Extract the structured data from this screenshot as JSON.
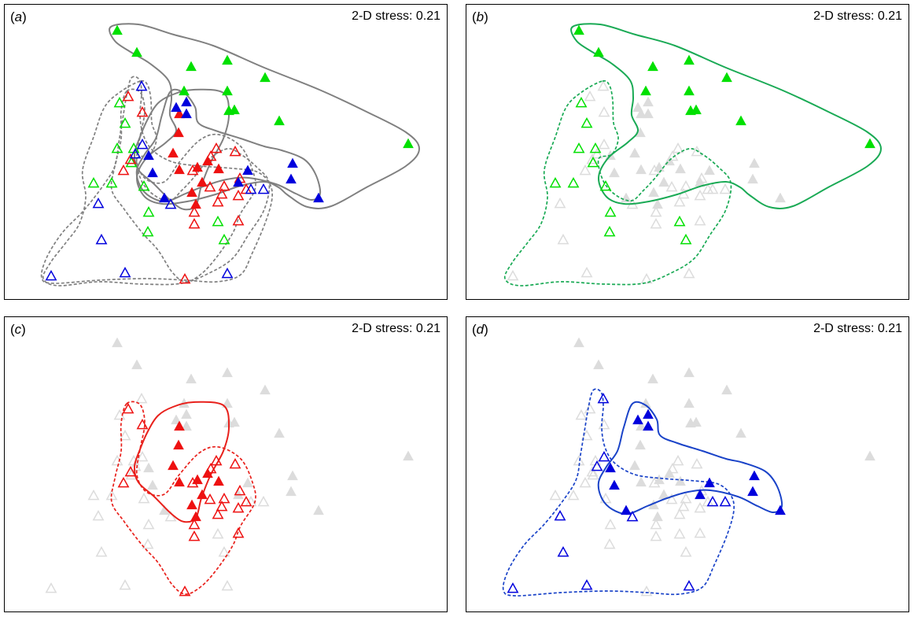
{
  "chart_data": [
    {
      "type": "scatter",
      "panel_label": "a",
      "stress_text": "2-D stress: 0.21",
      "highlight": "all",
      "outlines": [
        "green_filled",
        "green_open",
        "red_filled",
        "red_open",
        "blue_filled",
        "blue_open"
      ],
      "outline_color": "#808080"
    },
    {
      "type": "scatter",
      "panel_label": "b",
      "stress_text": "2-D stress: 0.21",
      "highlight": "green",
      "outlines": [
        "green_filled",
        "green_open"
      ],
      "outline_color": "#1aaa55"
    },
    {
      "type": "scatter",
      "panel_label": "c",
      "stress_text": "2-D stress: 0.21",
      "highlight": "red",
      "outlines": [
        "red_filled",
        "red_open"
      ],
      "outline_color": "#e8211c"
    },
    {
      "type": "scatter",
      "panel_label": "d",
      "stress_text": "2-D stress: 0.21",
      "highlight": "blue",
      "outlines": [
        "blue_filled",
        "blue_open"
      ],
      "outline_color": "#1a43c8"
    }
  ],
  "axes": {
    "xlim": [
      0,
      564
    ],
    "ylim": [
      0,
      376
    ],
    "ticks": "none",
    "grid": false
  },
  "colors": {
    "green": "#00e000",
    "red": "#ee1111",
    "blue": "#0000dd",
    "background_points": "#dcdcdc"
  },
  "points": [
    {
      "g": "green",
      "f": true,
      "x": 143,
      "y": 33
    },
    {
      "g": "green",
      "f": true,
      "x": 168,
      "y": 61
    },
    {
      "g": "green",
      "f": true,
      "x": 237,
      "y": 79
    },
    {
      "g": "green",
      "f": true,
      "x": 283,
      "y": 71
    },
    {
      "g": "green",
      "f": true,
      "x": 331,
      "y": 93
    },
    {
      "g": "green",
      "f": true,
      "x": 228,
      "y": 110
    },
    {
      "g": "green",
      "f": true,
      "x": 283,
      "y": 110
    },
    {
      "g": "green",
      "f": true,
      "x": 285,
      "y": 135
    },
    {
      "g": "green",
      "f": true,
      "x": 292,
      "y": 134
    },
    {
      "g": "green",
      "f": true,
      "x": 349,
      "y": 148
    },
    {
      "g": "green",
      "f": true,
      "x": 513,
      "y": 177
    },
    {
      "g": "green",
      "f": false,
      "x": 146,
      "y": 125
    },
    {
      "g": "green",
      "f": false,
      "x": 153,
      "y": 151
    },
    {
      "g": "green",
      "f": false,
      "x": 143,
      "y": 183
    },
    {
      "g": "green",
      "f": false,
      "x": 164,
      "y": 183
    },
    {
      "g": "green",
      "f": false,
      "x": 161,
      "y": 201
    },
    {
      "g": "green",
      "f": false,
      "x": 113,
      "y": 227
    },
    {
      "g": "green",
      "f": false,
      "x": 136,
      "y": 227
    },
    {
      "g": "green",
      "f": false,
      "x": 177,
      "y": 231
    },
    {
      "g": "green",
      "f": false,
      "x": 183,
      "y": 264
    },
    {
      "g": "green",
      "f": false,
      "x": 271,
      "y": 276
    },
    {
      "g": "green",
      "f": false,
      "x": 182,
      "y": 289
    },
    {
      "g": "green",
      "f": false,
      "x": 279,
      "y": 299
    },
    {
      "g": "red",
      "f": true,
      "x": 222,
      "y": 139
    },
    {
      "g": "red",
      "f": true,
      "x": 221,
      "y": 163
    },
    {
      "g": "red",
      "f": true,
      "x": 214,
      "y": 189
    },
    {
      "g": "red",
      "f": true,
      "x": 258,
      "y": 199
    },
    {
      "g": "red",
      "f": true,
      "x": 245,
      "y": 207
    },
    {
      "g": "red",
      "f": true,
      "x": 222,
      "y": 210
    },
    {
      "g": "red",
      "f": true,
      "x": 272,
      "y": 209
    },
    {
      "g": "red",
      "f": true,
      "x": 238,
      "y": 239
    },
    {
      "g": "red",
      "f": true,
      "x": 251,
      "y": 226
    },
    {
      "g": "red",
      "f": true,
      "x": 243,
      "y": 254
    },
    {
      "g": "red",
      "f": false,
      "x": 157,
      "y": 117
    },
    {
      "g": "red",
      "f": false,
      "x": 175,
      "y": 137
    },
    {
      "g": "red",
      "f": false,
      "x": 160,
      "y": 197
    },
    {
      "g": "red",
      "f": false,
      "x": 151,
      "y": 211
    },
    {
      "g": "red",
      "f": false,
      "x": 269,
      "y": 183
    },
    {
      "g": "red",
      "f": false,
      "x": 293,
      "y": 187
    },
    {
      "g": "red",
      "f": false,
      "x": 262,
      "y": 193
    },
    {
      "g": "red",
      "f": false,
      "x": 239,
      "y": 211
    },
    {
      "g": "red",
      "f": false,
      "x": 261,
      "y": 232
    },
    {
      "g": "red",
      "f": false,
      "x": 279,
      "y": 231
    },
    {
      "g": "red",
      "f": false,
      "x": 299,
      "y": 221
    },
    {
      "g": "red",
      "f": false,
      "x": 307,
      "y": 235
    },
    {
      "g": "red",
      "f": false,
      "x": 276,
      "y": 241
    },
    {
      "g": "red",
      "f": false,
      "x": 271,
      "y": 251
    },
    {
      "g": "red",
      "f": false,
      "x": 297,
      "y": 243
    },
    {
      "g": "red",
      "f": false,
      "x": 241,
      "y": 264
    },
    {
      "g": "red",
      "f": false,
      "x": 297,
      "y": 275
    },
    {
      "g": "red",
      "f": false,
      "x": 241,
      "y": 279
    },
    {
      "g": "red",
      "f": false,
      "x": 229,
      "y": 349
    },
    {
      "g": "blue",
      "f": true,
      "x": 218,
      "y": 131
    },
    {
      "g": "blue",
      "f": true,
      "x": 231,
      "y": 139
    },
    {
      "g": "blue",
      "f": true,
      "x": 231,
      "y": 124
    },
    {
      "g": "blue",
      "f": true,
      "x": 183,
      "y": 192
    },
    {
      "g": "blue",
      "f": true,
      "x": 188,
      "y": 214
    },
    {
      "g": "blue",
      "f": true,
      "x": 366,
      "y": 202
    },
    {
      "g": "blue",
      "f": true,
      "x": 364,
      "y": 222
    },
    {
      "g": "blue",
      "f": true,
      "x": 309,
      "y": 211
    },
    {
      "g": "blue",
      "f": true,
      "x": 297,
      "y": 226
    },
    {
      "g": "blue",
      "f": true,
      "x": 203,
      "y": 246
    },
    {
      "g": "blue",
      "f": true,
      "x": 399,
      "y": 246
    },
    {
      "g": "blue",
      "f": false,
      "x": 174,
      "y": 104
    },
    {
      "g": "blue",
      "f": false,
      "x": 175,
      "y": 178
    },
    {
      "g": "blue",
      "f": false,
      "x": 166,
      "y": 190
    },
    {
      "g": "blue",
      "f": false,
      "x": 313,
      "y": 235
    },
    {
      "g": "blue",
      "f": false,
      "x": 329,
      "y": 235
    },
    {
      "g": "blue",
      "f": false,
      "x": 211,
      "y": 254
    },
    {
      "g": "blue",
      "f": false,
      "x": 119,
      "y": 253
    },
    {
      "g": "blue",
      "f": false,
      "x": 123,
      "y": 299
    },
    {
      "g": "blue",
      "f": false,
      "x": 153,
      "y": 341
    },
    {
      "g": "blue",
      "f": false,
      "x": 59,
      "y": 345
    },
    {
      "g": "blue",
      "f": false,
      "x": 283,
      "y": 342
    }
  ],
  "outlines": {
    "green_filled": [
      [
        135,
        28
      ],
      [
        170,
        25
      ],
      [
        215,
        38
      ],
      [
        265,
        52
      ],
      [
        330,
        80
      ],
      [
        400,
        108
      ],
      [
        460,
        136
      ],
      [
        510,
        162
      ],
      [
        527,
        183
      ],
      [
        510,
        205
      ],
      [
        460,
        232
      ],
      [
        415,
        256
      ],
      [
        385,
        257
      ],
      [
        360,
        242
      ],
      [
        348,
        232
      ],
      [
        330,
        225
      ],
      [
        300,
        230
      ],
      [
        268,
        241
      ],
      [
        232,
        250
      ],
      [
        200,
        253
      ],
      [
        178,
        244
      ],
      [
        168,
        220
      ],
      [
        180,
        195
      ],
      [
        205,
        175
      ],
      [
        218,
        160
      ],
      [
        210,
        140
      ],
      [
        212,
        118
      ],
      [
        208,
        96
      ],
      [
        185,
        75
      ],
      [
        160,
        60
      ],
      [
        140,
        46
      ]
    ],
    "green_open": [
      [
        173,
        97
      ],
      [
        182,
        103
      ],
      [
        186,
        122
      ],
      [
        187,
        150
      ],
      [
        193,
        170
      ],
      [
        185,
        190
      ],
      [
        168,
        196
      ],
      [
        174,
        224
      ],
      [
        190,
        242
      ],
      [
        210,
        249
      ],
      [
        225,
        236
      ],
      [
        240,
        220
      ],
      [
        260,
        196
      ],
      [
        283,
        183
      ],
      [
        300,
        190
      ],
      [
        320,
        206
      ],
      [
        336,
        226
      ],
      [
        330,
        260
      ],
      [
        310,
        292
      ],
      [
        290,
        322
      ],
      [
        262,
        340
      ],
      [
        225,
        354
      ],
      [
        175,
        355
      ],
      [
        120,
        352
      ],
      [
        68,
        357
      ],
      [
        49,
        348
      ],
      [
        58,
        328
      ],
      [
        78,
        302
      ],
      [
        95,
        278
      ],
      [
        103,
        245
      ],
      [
        99,
        210
      ],
      [
        113,
        168
      ],
      [
        127,
        130
      ],
      [
        148,
        110
      ]
    ]
  }
}
